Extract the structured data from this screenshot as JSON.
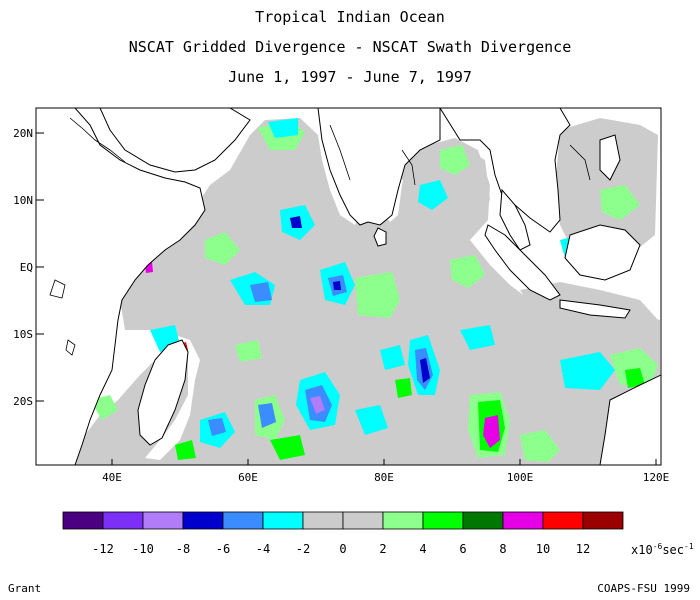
{
  "title": {
    "line1": "Tropical Indian Ocean",
    "line2": "NSCAT Gridded Divergence - NSCAT Swath Divergence",
    "line3": "June 1, 1997 - June 7, 1997"
  },
  "map": {
    "lat_labels": [
      "20N",
      "10N",
      "EQ",
      "10S",
      "20S"
    ],
    "lon_labels": [
      "40E",
      "60E",
      "80E",
      "100E",
      "120E"
    ]
  },
  "legend": {
    "colors": [
      "#4b0082",
      "#7b2ff7",
      "#b07cf7",
      "#0000cd",
      "#3a8cff",
      "#00ffff",
      "#cccccc",
      "#cccccc",
      "#8dff8d",
      "#00ff00",
      "#007800",
      "#e600e6",
      "#ff0000",
      "#9b0000"
    ],
    "values": [
      "-12",
      "-10",
      "-8",
      "-6",
      "-4",
      "-2",
      "0",
      "2",
      "4",
      "6",
      "8",
      "10",
      "12"
    ],
    "units_text": "x10",
    "units_exp": "-6",
    "units_tail": "sec",
    "units_tail_exp": "-1"
  },
  "footer": {
    "left": "Grant",
    "right": "COAPS-FSU 1999"
  }
}
